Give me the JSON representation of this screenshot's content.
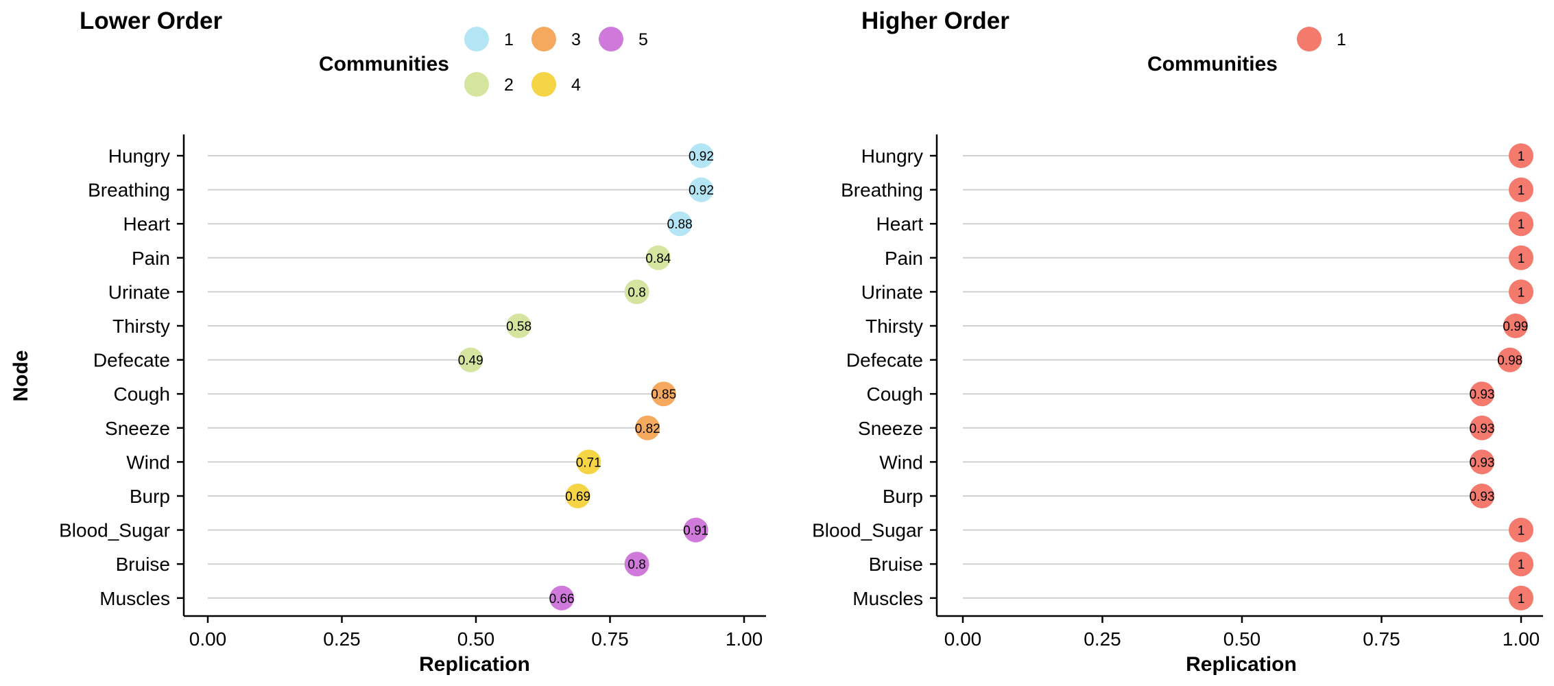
{
  "ylabel": "Node",
  "chart_data": [
    {
      "type": "scatter",
      "title": "Lower Order",
      "xlabel": "Replication",
      "ylabel": "Node",
      "xlim": [
        0,
        1
      ],
      "x_ticks": [
        "0.00",
        "0.25",
        "0.50",
        "0.75",
        "1.00"
      ],
      "legend": {
        "title": "Communities",
        "entries": [
          {
            "label": "1",
            "color": "#b3e5f5"
          },
          {
            "label": "2",
            "color": "#d5e5a0"
          },
          {
            "label": "3",
            "color": "#f5a95f"
          },
          {
            "label": "4",
            "color": "#f5d445"
          },
          {
            "label": "5",
            "color": "#cf7adb"
          }
        ]
      },
      "categories": [
        "Hungry",
        "Breathing",
        "Heart",
        "Pain",
        "Urinate",
        "Thirsty",
        "Defecate",
        "Cough",
        "Sneeze",
        "Wind",
        "Burp",
        "Blood_Sugar",
        "Bruise",
        "Muscles"
      ],
      "values": [
        0.92,
        0.92,
        0.88,
        0.84,
        0.8,
        0.58,
        0.49,
        0.85,
        0.82,
        0.71,
        0.69,
        0.91,
        0.8,
        0.66
      ],
      "value_labels": [
        "0.92",
        "0.92",
        "0.88",
        "0.84",
        "0.8",
        "0.58",
        "0.49",
        "0.85",
        "0.82",
        "0.71",
        "0.69",
        "0.91",
        "0.8",
        "0.66"
      ],
      "community": [
        "1",
        "1",
        "1",
        "2",
        "2",
        "2",
        "2",
        "3",
        "3",
        "4",
        "4",
        "5",
        "5",
        "5"
      ]
    },
    {
      "type": "scatter",
      "title": "Higher Order",
      "xlabel": "Replication",
      "ylabel": "",
      "xlim": [
        0,
        1
      ],
      "x_ticks": [
        "0.00",
        "0.25",
        "0.50",
        "0.75",
        "1.00"
      ],
      "legend": {
        "title": "Communities",
        "entries": [
          {
            "label": "1",
            "color": "#f47a6e"
          }
        ]
      },
      "categories": [
        "Hungry",
        "Breathing",
        "Heart",
        "Pain",
        "Urinate",
        "Thirsty",
        "Defecate",
        "Cough",
        "Sneeze",
        "Wind",
        "Burp",
        "Blood_Sugar",
        "Bruise",
        "Muscles"
      ],
      "values": [
        1,
        1,
        1,
        1,
        1,
        0.99,
        0.98,
        0.93,
        0.93,
        0.93,
        0.93,
        1,
        1,
        1
      ],
      "value_labels": [
        "1",
        "1",
        "1",
        "1",
        "1",
        "0.99",
        "0.98",
        "0.93",
        "0.93",
        "0.93",
        "0.93",
        "1",
        "1",
        "1"
      ],
      "community": [
        "1",
        "1",
        "1",
        "1",
        "1",
        "1",
        "1",
        "1",
        "1",
        "1",
        "1",
        "1",
        "1",
        "1"
      ]
    }
  ]
}
